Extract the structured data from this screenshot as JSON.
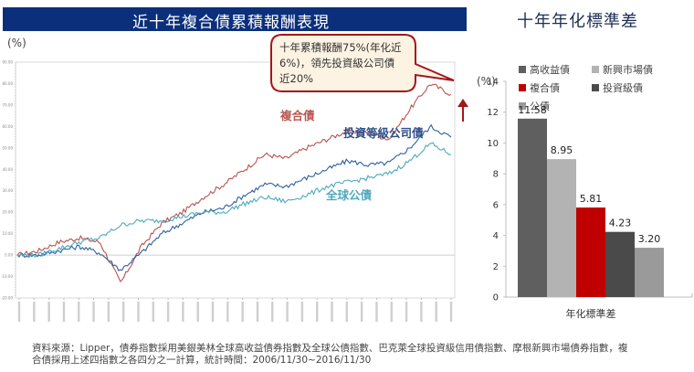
{
  "header": {
    "left_title": "近十年複合債累積報酬表現",
    "right_title": "十年年化標準差",
    "banner_color": "#0b2f7a"
  },
  "line_chart": {
    "unit": "(%)",
    "callout": {
      "lines": [
        "十年累積報酬75%(年化近",
        "6%)，領先投資級公司債",
        "近20%"
      ],
      "border_color": "#a0171c",
      "fill_color": "#fdf3e3"
    },
    "series_labels": {
      "composite": "複合債",
      "ig_corp": "投資等級公司債",
      "global_gov": "全球公債"
    }
  },
  "bar_chart": {
    "unit": "(%)",
    "legend": [
      {
        "label": "高收益債",
        "color": "#5f5f5f"
      },
      {
        "label": "新興市場債",
        "color": "#b3b3b3"
      },
      {
        "label": "複合債",
        "color": "#c00000"
      },
      {
        "label": "投資級債",
        "color": "#4a4a4a"
      },
      {
        "label": "公債",
        "color": "#9a9a9a"
      }
    ],
    "category_label": "年化標準差"
  },
  "footer": {
    "line1": "資料來源：Lipper，債券指數採用美銀美林全球高收益債券指數及全球公債指數、巴克萊全球投資級信用債指數、摩根新興市場債券指數，複",
    "line2": "合債採用上述四指數之各四分之一計算，統計時間：2006/11/30~2016/11/30"
  },
  "chart_data": [
    {
      "type": "line",
      "title": "近十年複合債累積報酬表現",
      "xlabel": "",
      "ylabel": "(%)",
      "ylim": [
        -20,
        90
      ],
      "yticks": [
        "90.00",
        "80.00",
        "70.00",
        "60.00",
        "50.00",
        "40.00",
        "30.00",
        "20.00",
        "10.00",
        "0.00",
        "-10.00",
        "-20.00"
      ],
      "x_range": "2006/11/30 ~ 2016/11/30",
      "grid": false,
      "x": [
        "2006/11",
        "2007/05",
        "2007/11",
        "2008/05",
        "2008/11",
        "2009/05",
        "2009/11",
        "2010/05",
        "2010/11",
        "2011/05",
        "2011/11",
        "2012/05",
        "2012/11",
        "2013/05",
        "2013/11",
        "2014/05",
        "2014/11",
        "2015/05",
        "2015/11",
        "2016/05",
        "2016/09",
        "2016/11"
      ],
      "series": [
        {
          "name": "複合債",
          "color": "#b85450",
          "values": [
            0,
            2,
            6,
            8,
            6,
            -13,
            4,
            15,
            20,
            27,
            33,
            40,
            47,
            45,
            50,
            54,
            58,
            57,
            54,
            68,
            80,
            75
          ]
        },
        {
          "name": "投資等級公司債",
          "color": "#2f5f9e",
          "values": [
            0,
            0,
            2,
            4,
            1,
            -7,
            1,
            10,
            15,
            20,
            22,
            28,
            33,
            32,
            36,
            40,
            44,
            42,
            43,
            50,
            60,
            55
          ]
        },
        {
          "name": "全球公債",
          "color": "#4fa8c0",
          "values": [
            0,
            0,
            3,
            6,
            8,
            14,
            16,
            16,
            18,
            20,
            20,
            24,
            27,
            25,
            28,
            32,
            34,
            36,
            38,
            44,
            52,
            47
          ]
        }
      ],
      "annotations": [
        "十年累積報酬75%(年化近6%)，領先投資級公司債近20%"
      ]
    },
    {
      "type": "bar",
      "title": "十年年化標準差",
      "xlabel": "年化標準差",
      "ylabel": "(%)",
      "ylim": [
        0,
        14
      ],
      "yticks": [
        0,
        2,
        4,
        6,
        8,
        10,
        12,
        14
      ],
      "categories": [
        "年化標準差"
      ],
      "series": [
        {
          "name": "高收益債",
          "values": [
            11.58
          ],
          "color": "#5f5f5f"
        },
        {
          "name": "新興市場債",
          "values": [
            8.95
          ],
          "color": "#b3b3b3"
        },
        {
          "name": "複合債",
          "values": [
            5.81
          ],
          "color": "#c00000"
        },
        {
          "name": "投資級債",
          "values": [
            4.23
          ],
          "color": "#4a4a4a"
        },
        {
          "name": "公債",
          "values": [
            3.2
          ],
          "color": "#9a9a9a"
        }
      ],
      "legend_position": "top"
    }
  ]
}
